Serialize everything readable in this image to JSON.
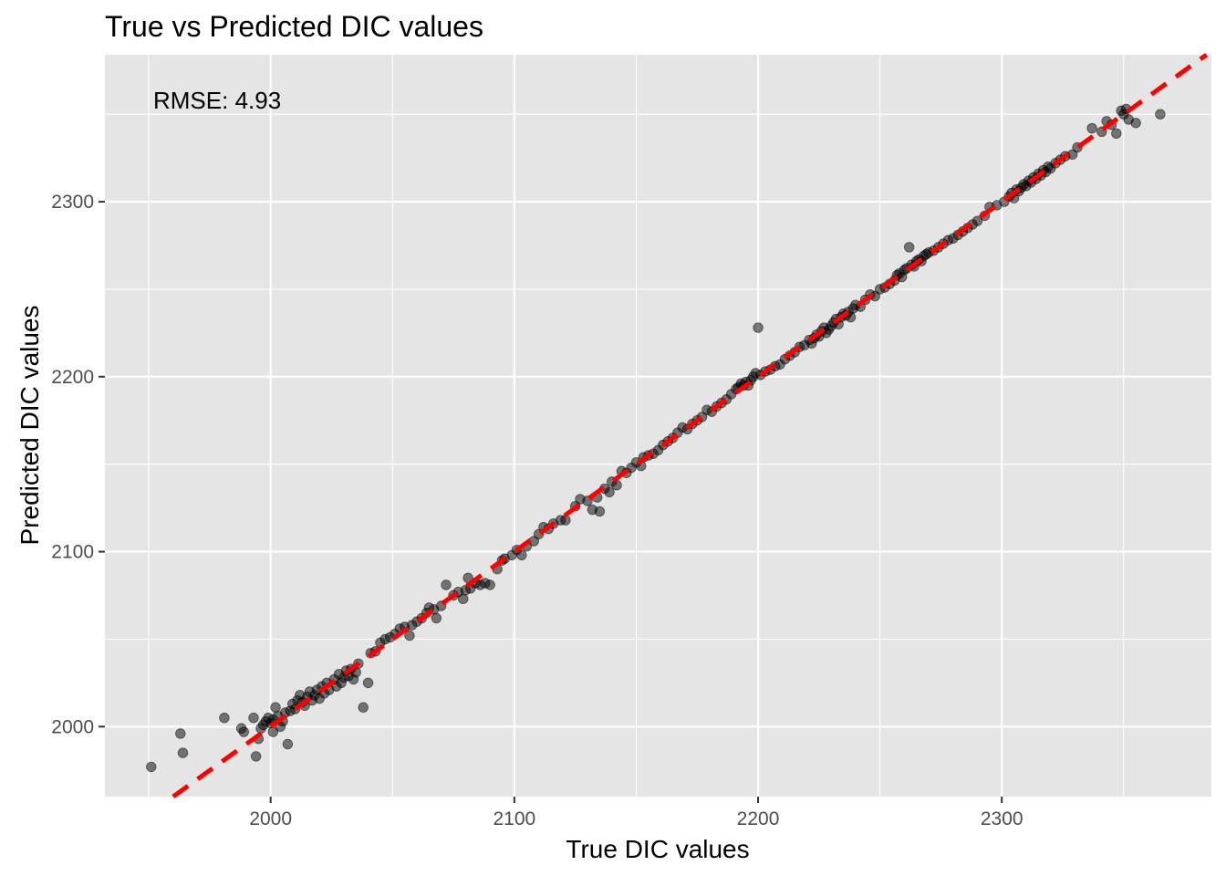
{
  "chart_data": {
    "type": "scatter",
    "title": "True vs Predicted DIC values",
    "xlabel": "True DIC values",
    "ylabel": "Predicted DIC values",
    "xlim": [
      1932,
      2386
    ],
    "ylim": [
      1960,
      2384
    ],
    "x_ticks": [
      2000,
      2100,
      2200,
      2300
    ],
    "y_ticks": [
      2000,
      2100,
      2200,
      2300
    ],
    "x_tick_labels": [
      "2000",
      "2100",
      "2200",
      "2300"
    ],
    "y_tick_labels": [
      "2000",
      "2100",
      "2200",
      "2300"
    ],
    "grid": true,
    "annotation": "RMSE: 4.93",
    "reference_line": {
      "slope": 1,
      "intercept": 0,
      "style": "dashed",
      "color": "#ff0000"
    },
    "colors": {
      "panel": "#e5e5e5",
      "grid": "#ffffff",
      "points": "#000000",
      "line": "#ff0000"
    },
    "points": [
      [
        1951,
        1977
      ],
      [
        1963,
        1996
      ],
      [
        1964,
        1985
      ],
      [
        1981,
        2005
      ],
      [
        1988,
        1999
      ],
      [
        1989,
        1997
      ],
      [
        1993,
        2005
      ],
      [
        1994,
        1983
      ],
      [
        1995,
        1993
      ],
      [
        1996,
        1999
      ],
      [
        1997,
        2001
      ],
      [
        1998,
        2003
      ],
      [
        1999,
        2005
      ],
      [
        2000,
        2002
      ],
      [
        2001,
        1997
      ],
      [
        2001,
        2004
      ],
      [
        2002,
        2011
      ],
      [
        2003,
        2006
      ],
      [
        2004,
        2000
      ],
      [
        2005,
        2003
      ],
      [
        2006,
        2008
      ],
      [
        2007,
        1990
      ],
      [
        2008,
        2009
      ],
      [
        2009,
        2013
      ],
      [
        2010,
        2010
      ],
      [
        2011,
        2015
      ],
      [
        2012,
        2018
      ],
      [
        2013,
        2014
      ],
      [
        2014,
        2012
      ],
      [
        2015,
        2017
      ],
      [
        2016,
        2020
      ],
      [
        2017,
        2015
      ],
      [
        2018,
        2018
      ],
      [
        2019,
        2021
      ],
      [
        2020,
        2016
      ],
      [
        2021,
        2023
      ],
      [
        2022,
        2019
      ],
      [
        2023,
        2025
      ],
      [
        2024,
        2021
      ],
      [
        2026,
        2027
      ],
      [
        2027,
        2023
      ],
      [
        2028,
        2030
      ],
      [
        2029,
        2025
      ],
      [
        2030,
        2028
      ],
      [
        2031,
        2032
      ],
      [
        2032,
        2029
      ],
      [
        2033,
        2033
      ],
      [
        2034,
        2027
      ],
      [
        2035,
        2031
      ],
      [
        2036,
        2036
      ],
      [
        2038,
        2011
      ],
      [
        2040,
        2025
      ],
      [
        2041,
        2042
      ],
      [
        2043,
        2043
      ],
      [
        2045,
        2048
      ],
      [
        2047,
        2050
      ],
      [
        2049,
        2051
      ],
      [
        2051,
        2053
      ],
      [
        2053,
        2056
      ],
      [
        2055,
        2057
      ],
      [
        2057,
        2052
      ],
      [
        2058,
        2058
      ],
      [
        2060,
        2060
      ],
      [
        2062,
        2062
      ],
      [
        2064,
        2065
      ],
      [
        2065,
        2068
      ],
      [
        2067,
        2067
      ],
      [
        2068,
        2062
      ],
      [
        2070,
        2069
      ],
      [
        2072,
        2081
      ],
      [
        2075,
        2075
      ],
      [
        2077,
        2077
      ],
      [
        2079,
        2073
      ],
      [
        2080,
        2078
      ],
      [
        2081,
        2085
      ],
      [
        2082,
        2079
      ],
      [
        2084,
        2082
      ],
      [
        2086,
        2081
      ],
      [
        2088,
        2082
      ],
      [
        2090,
        2081
      ],
      [
        2093,
        2090
      ],
      [
        2095,
        2095
      ],
      [
        2096,
        2096
      ],
      [
        2099,
        2098
      ],
      [
        2101,
        2101
      ],
      [
        2103,
        2098
      ],
      [
        2105,
        2103
      ],
      [
        2108,
        2106
      ],
      [
        2110,
        2110
      ],
      [
        2112,
        2114
      ],
      [
        2114,
        2113
      ],
      [
        2116,
        2116
      ],
      [
        2119,
        2118
      ],
      [
        2121,
        2118
      ],
      [
        2125,
        2126
      ],
      [
        2127,
        2130
      ],
      [
        2130,
        2129
      ],
      [
        2132,
        2124
      ],
      [
        2134,
        2131
      ],
      [
        2135,
        2123
      ],
      [
        2137,
        2136
      ],
      [
        2139,
        2134
      ],
      [
        2140,
        2140
      ],
      [
        2142,
        2138
      ],
      [
        2144,
        2146
      ],
      [
        2146,
        2145
      ],
      [
        2148,
        2148
      ],
      [
        2150,
        2151
      ],
      [
        2152,
        2149
      ],
      [
        2153,
        2154
      ],
      [
        2155,
        2155
      ],
      [
        2157,
        2156
      ],
      [
        2159,
        2158
      ],
      [
        2161,
        2161
      ],
      [
        2163,
        2163
      ],
      [
        2165,
        2165
      ],
      [
        2167,
        2168
      ],
      [
        2169,
        2171
      ],
      [
        2171,
        2170
      ],
      [
        2173,
        2173
      ],
      [
        2175,
        2175
      ],
      [
        2177,
        2177
      ],
      [
        2179,
        2181
      ],
      [
        2181,
        2180
      ],
      [
        2183,
        2183
      ],
      [
        2185,
        2185
      ],
      [
        2187,
        2187
      ],
      [
        2189,
        2190
      ],
      [
        2191,
        2193
      ],
      [
        2192,
        2194
      ],
      [
        2193,
        2196
      ],
      [
        2194,
        2195
      ],
      [
        2195,
        2197
      ],
      [
        2196,
        2195
      ],
      [
        2197,
        2198
      ],
      [
        2198,
        2200
      ],
      [
        2199,
        2202
      ],
      [
        2200,
        2228
      ],
      [
        2201,
        2201
      ],
      [
        2203,
        2203
      ],
      [
        2205,
        2204
      ],
      [
        2207,
        2206
      ],
      [
        2209,
        2207
      ],
      [
        2211,
        2210
      ],
      [
        2213,
        2212
      ],
      [
        2215,
        2214
      ],
      [
        2217,
        2217
      ],
      [
        2219,
        2218
      ],
      [
        2221,
        2221
      ],
      [
        2222,
        2219
      ],
      [
        2223,
        2222
      ],
      [
        2224,
        2224
      ],
      [
        2225,
        2223
      ],
      [
        2226,
        2226
      ],
      [
        2227,
        2228
      ],
      [
        2228,
        2225
      ],
      [
        2229,
        2227
      ],
      [
        2230,
        2229
      ],
      [
        2231,
        2231
      ],
      [
        2232,
        2233
      ],
      [
        2233,
        2230
      ],
      [
        2234,
        2234
      ],
      [
        2235,
        2236
      ],
      [
        2236,
        2235
      ],
      [
        2237,
        2237
      ],
      [
        2238,
        2234
      ],
      [
        2239,
        2239
      ],
      [
        2240,
        2241
      ],
      [
        2242,
        2240
      ],
      [
        2244,
        2244
      ],
      [
        2246,
        2247
      ],
      [
        2248,
        2246
      ],
      [
        2250,
        2250
      ],
      [
        2252,
        2251
      ],
      [
        2254,
        2253
      ],
      [
        2256,
        2255
      ],
      [
        2257,
        2258
      ],
      [
        2258,
        2259
      ],
      [
        2259,
        2257
      ],
      [
        2260,
        2261
      ],
      [
        2261,
        2262
      ],
      [
        2262,
        2274
      ],
      [
        2263,
        2264
      ],
      [
        2264,
        2263
      ],
      [
        2265,
        2266
      ],
      [
        2266,
        2267
      ],
      [
        2267,
        2266
      ],
      [
        2268,
        2269
      ],
      [
        2269,
        2270
      ],
      [
        2270,
        2271
      ],
      [
        2272,
        2272
      ],
      [
        2274,
        2274
      ],
      [
        2276,
        2276
      ],
      [
        2278,
        2278
      ],
      [
        2280,
        2279
      ],
      [
        2282,
        2281
      ],
      [
        2284,
        2283
      ],
      [
        2286,
        2285
      ],
      [
        2288,
        2287
      ],
      [
        2290,
        2289
      ],
      [
        2293,
        2292
      ],
      [
        2295,
        2297
      ],
      [
        2298,
        2298
      ],
      [
        2301,
        2300
      ],
      [
        2303,
        2303
      ],
      [
        2304,
        2305
      ],
      [
        2305,
        2302
      ],
      [
        2306,
        2307
      ],
      [
        2307,
        2306
      ],
      [
        2308,
        2308
      ],
      [
        2309,
        2310
      ],
      [
        2310,
        2309
      ],
      [
        2311,
        2312
      ],
      [
        2312,
        2311
      ],
      [
        2313,
        2314
      ],
      [
        2314,
        2313
      ],
      [
        2315,
        2316
      ],
      [
        2316,
        2315
      ],
      [
        2317,
        2318
      ],
      [
        2318,
        2317
      ],
      [
        2319,
        2320
      ],
      [
        2320,
        2319
      ],
      [
        2322,
        2322
      ],
      [
        2324,
        2324
      ],
      [
        2326,
        2326
      ],
      [
        2329,
        2327
      ],
      [
        2331,
        2331
      ],
      [
        2337,
        2342
      ],
      [
        2341,
        2340
      ],
      [
        2343,
        2346
      ],
      [
        2345,
        2344
      ],
      [
        2347,
        2339
      ],
      [
        2349,
        2352
      ],
      [
        2350,
        2350
      ],
      [
        2351,
        2353
      ],
      [
        2352,
        2347
      ],
      [
        2355,
        2345
      ],
      [
        2365,
        2350
      ]
    ]
  }
}
